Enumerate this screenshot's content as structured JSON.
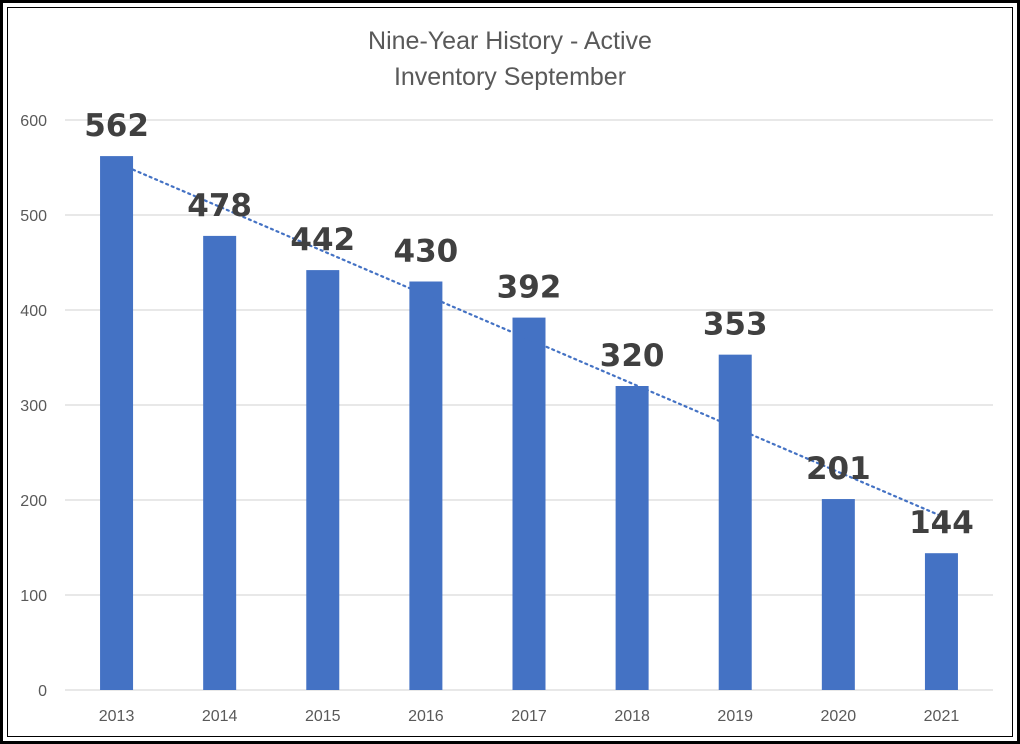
{
  "chart_data": {
    "type": "bar",
    "title_lines": [
      "Nine-Year History - Active",
      "Inventory September"
    ],
    "categories": [
      "2013",
      "2014",
      "2015",
      "2016",
      "2017",
      "2018",
      "2019",
      "2020",
      "2021"
    ],
    "values": [
      562,
      478,
      442,
      430,
      392,
      320,
      353,
      201,
      144
    ],
    "data_labels": [
      "562",
      "478",
      "442",
      "430",
      "392",
      "320",
      "353",
      "201",
      "144"
    ],
    "xlabel": "",
    "ylabel": "",
    "ylim": [
      0,
      600
    ],
    "yticks": [
      0,
      100,
      200,
      300,
      400,
      500,
      600
    ],
    "ytick_labels": [
      "0",
      "100",
      "200",
      "300",
      "400",
      "500",
      "600"
    ],
    "grid": true,
    "legend": "none",
    "trendline": {
      "type": "linear",
      "style": "dotted"
    },
    "colors": {
      "bar": "#4472C4",
      "trendline": "#4472C4",
      "grid": "#D9D9D9"
    }
  }
}
